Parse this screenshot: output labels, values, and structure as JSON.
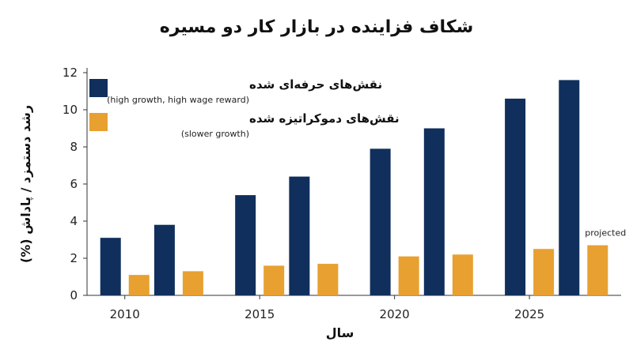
{
  "chart_data": {
    "type": "bar",
    "title": "شکاف فزاینده در بازار کار دو مسیره",
    "xlabel": "سال",
    "ylabel": "رشد دستمزد / پاداش (%)",
    "ylim": [
      0,
      12
    ],
    "yticks": [
      0,
      2,
      4,
      6,
      8,
      10,
      12
    ],
    "xticks": [
      "2010",
      "2015",
      "2020",
      "2025"
    ],
    "grid": false,
    "legend_position": "top-left",
    "x": [
      2010,
      2012,
      2015,
      2017,
      2020,
      2022,
      2025,
      2027
    ],
    "series": [
      {
        "name": "نقش‌های حرفه‌ای شده",
        "subtitle": "(high growth, high wage reward)",
        "color": "#102f5c",
        "values": [
          3.1,
          3.8,
          5.4,
          6.4,
          7.9,
          9.0,
          10.6,
          11.6
        ]
      },
      {
        "name": "نقش‌های دموکراتیزه شده",
        "subtitle": "(slower growth)",
        "color": "#e8a030",
        "values": [
          1.1,
          1.3,
          1.6,
          1.7,
          2.1,
          2.2,
          2.5,
          2.7
        ]
      }
    ],
    "annotations": [
      {
        "text": "projected",
        "series": 1,
        "index": 7
      }
    ]
  }
}
